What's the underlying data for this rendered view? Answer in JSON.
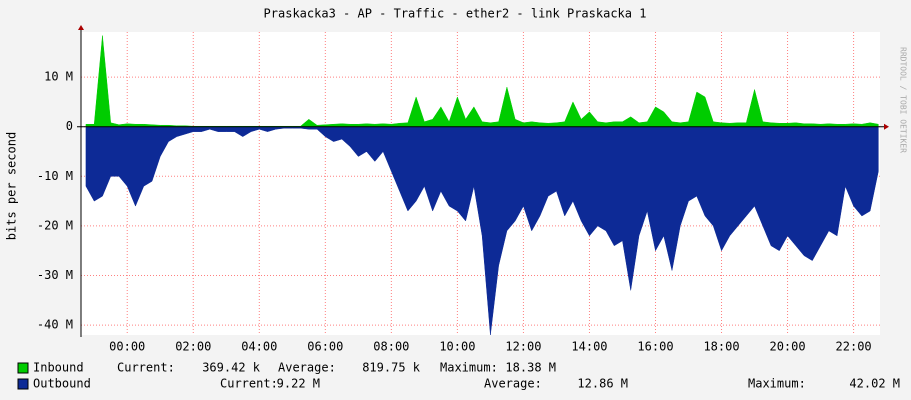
{
  "chart_data": {
    "type": "area",
    "title": "Praskacka3 - AP - Traffic - ether2 - link Praskacka 1",
    "y_label": "bits per second",
    "watermark": "RRDTOOL / TOBI OETIKER",
    "x": [
      -1.25,
      -1,
      -0.75,
      -0.5,
      -0.25,
      0,
      0.25,
      0.5,
      0.75,
      1,
      1.25,
      1.5,
      1.75,
      2,
      2.25,
      2.5,
      2.75,
      3,
      3.25,
      3.5,
      3.75,
      4,
      4.25,
      4.5,
      4.75,
      5,
      5.25,
      5.5,
      5.75,
      6,
      6.25,
      6.5,
      6.75,
      7,
      7.25,
      7.5,
      7.75,
      8,
      8.25,
      8.5,
      8.75,
      9,
      9.25,
      9.5,
      9.75,
      10,
      10.25,
      10.5,
      10.75,
      11,
      11.25,
      11.5,
      11.75,
      12,
      12.25,
      12.5,
      12.75,
      13,
      13.25,
      13.5,
      13.75,
      14,
      14.25,
      14.5,
      14.75,
      15,
      15.25,
      15.5,
      15.75,
      16,
      16.25,
      16.5,
      16.75,
      17,
      17.25,
      17.5,
      17.75,
      18,
      18.25,
      18.5,
      18.75,
      19,
      19.25,
      19.5,
      19.75,
      20,
      20.25,
      20.5,
      20.75,
      21,
      21.25,
      21.5,
      21.75,
      22,
      22.25,
      22.5,
      22.75
    ],
    "series": [
      {
        "name": "Inbound",
        "color": "#00cc00",
        "values": [
          500000.0,
          500000.0,
          18380000.0,
          800000.0,
          400000.0,
          600000.0,
          500000.0,
          500000.0,
          400000.0,
          300000.0,
          300000.0,
          200000.0,
          200000.0,
          100000.0,
          100000.0,
          100000.0,
          100000.0,
          100000.0,
          100000.0,
          100000.0,
          100000.0,
          100000.0,
          100000.0,
          100000.0,
          100000.0,
          100000.0,
          100000.0,
          1500000.0,
          300000.0,
          400000.0,
          500000.0,
          600000.0,
          500000.0,
          500000.0,
          600000.0,
          500000.0,
          600000.0,
          500000.0,
          700000.0,
          800000.0,
          6000000.0,
          1000000.0,
          1500000.0,
          4000000.0,
          1000000.0,
          6000000.0,
          1500000.0,
          4000000.0,
          1000000.0,
          800000.0,
          1000000.0,
          8000000.0,
          1500000.0,
          800000.0,
          1000000.0,
          800000.0,
          700000.0,
          800000.0,
          1000000.0,
          5000000.0,
          1500000.0,
          3000000.0,
          1000000.0,
          800000.0,
          1000000.0,
          1000000.0,
          2000000.0,
          800000.0,
          1000000.0,
          4000000.0,
          3000000.0,
          1000000.0,
          800000.0,
          1000000.0,
          7000000.0,
          6000000.0,
          1000000.0,
          800000.0,
          700000.0,
          800000.0,
          800000.0,
          7500000.0,
          1000000.0,
          800000.0,
          700000.0,
          700000.0,
          800000.0,
          600000.0,
          600000.0,
          500000.0,
          600000.0,
          500000.0,
          500000.0,
          600000.0,
          500000.0,
          800000.0,
          500000.0
        ],
        "stats": [
          "369.42 k",
          "819.75 k",
          "18.38 M"
        ]
      },
      {
        "name": "Outbound",
        "color": "#0d2a96",
        "values": [
          -12000000.0,
          -15000000.0,
          -14000000.0,
          -10000000.0,
          -10000000.0,
          -12000000.0,
          -16000000.0,
          -12000000.0,
          -11000000.0,
          -6000000.0,
          -3000000.0,
          -2000000.0,
          -1500000.0,
          -1000000.0,
          -1000000.0,
          -500000.0,
          -1000000.0,
          -1000000.0,
          -1000000.0,
          -2000000.0,
          -1000000.0,
          -500000.0,
          -1000000.0,
          -500000.0,
          -300000.0,
          -300000.0,
          -300000.0,
          -500000.0,
          -500000.0,
          -2000000.0,
          -3000000.0,
          -2500000.0,
          -4000000.0,
          -6000000.0,
          -5000000.0,
          -7000000.0,
          -5000000.0,
          -9000000.0,
          -13000000.0,
          -17000000.0,
          -15000000.0,
          -12000000.0,
          -17000000.0,
          -13000000.0,
          -16000000.0,
          -17000000.0,
          -19000000.0,
          -12000000.0,
          -22000000.0,
          -42000000.0,
          -28000000.0,
          -21000000.0,
          -19000000.0,
          -16000000.0,
          -21000000.0,
          -18000000.0,
          -14000000.0,
          -13000000.0,
          -18000000.0,
          -15000000.0,
          -19000000.0,
          -22000000.0,
          -20000000.0,
          -21000000.0,
          -24000000.0,
          -23000000.0,
          -33000000.0,
          -22000000.0,
          -17000000.0,
          -25000000.0,
          -22000000.0,
          -29000000.0,
          -20000000.0,
          -15000000.0,
          -14000000.0,
          -18000000.0,
          -20000000.0,
          -25000000.0,
          -22000000.0,
          -20000000.0,
          -18000000.0,
          -16000000.0,
          -20000000.0,
          -24000000.0,
          -25000000.0,
          -22000000.0,
          -24000000.0,
          -26000000.0,
          -27000000.0,
          -24000000.0,
          -21000000.0,
          -22000000.0,
          -12000000.0,
          -16000000.0,
          -18000000.0,
          -17000000.0,
          -9000000.0
        ],
        "stats": [
          "9.22 M",
          "12.86 M",
          "42.02 M"
        ]
      }
    ],
    "stat_labels": [
      "Current:",
      "Average:",
      "Maximum:"
    ],
    "xlim": [
      -1.4,
      22.8
    ],
    "xticks": [
      {
        "value": 0,
        "label": "00:00"
      },
      {
        "value": 2,
        "label": "02:00"
      },
      {
        "value": 4,
        "label": "04:00"
      },
      {
        "value": 6,
        "label": "06:00"
      },
      {
        "value": 8,
        "label": "08:00"
      },
      {
        "value": 10,
        "label": "10:00"
      },
      {
        "value": 12,
        "label": "12:00"
      },
      {
        "value": 14,
        "label": "14:00"
      },
      {
        "value": 16,
        "label": "16:00"
      },
      {
        "value": 18,
        "label": "18:00"
      },
      {
        "value": 20,
        "label": "20:00"
      },
      {
        "value": 22,
        "label": "22:00"
      }
    ],
    "ylim": [
      -42000000.0,
      19100000.0
    ],
    "yticks": [
      {
        "value": -40000000.0,
        "label": "-40 M"
      },
      {
        "value": -30000000.0,
        "label": "-30 M"
      },
      {
        "value": -20000000.0,
        "label": "-20 M"
      },
      {
        "value": -10000000.0,
        "label": "-10 M"
      },
      0,
      {
        "value": 10000000.0,
        "label": "10 M"
      }
    ],
    "grid": true
  }
}
